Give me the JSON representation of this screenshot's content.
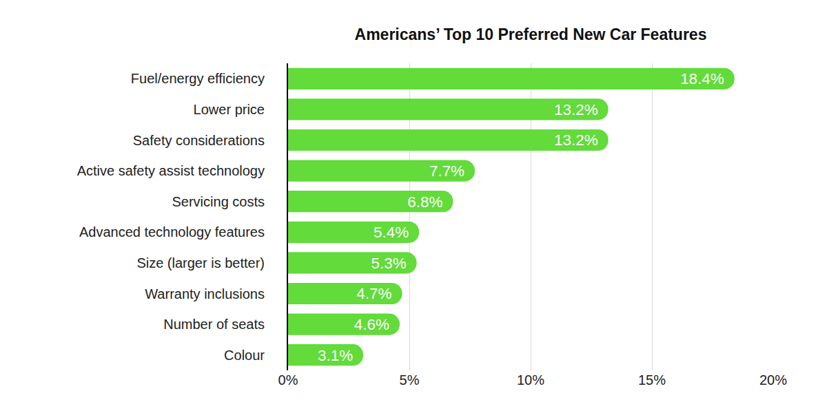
{
  "chart_data": {
    "type": "bar",
    "orientation": "horizontal",
    "title": "Americans’ Top 10 Preferred New Car Features",
    "categories": [
      "Fuel/energy efficiency",
      "Lower price",
      "Safety considerations",
      "Active safety assist technology",
      "Servicing costs",
      "Advanced technology features",
      "Size (larger is better)",
      "Warranty inclusions",
      "Number of seats",
      "Colour"
    ],
    "values": [
      18.4,
      13.2,
      13.2,
      7.7,
      6.8,
      5.4,
      5.3,
      4.7,
      4.6,
      3.1
    ],
    "value_labels": [
      "18.4%",
      "13.2%",
      "13.2%",
      "7.7%",
      "6.8%",
      "5.4%",
      "5.3%",
      "4.7%",
      "4.6%",
      "3.1%"
    ],
    "color": "#62db3b",
    "data_labels": true,
    "grid": true,
    "xlim": [
      0,
      20
    ],
    "xticks": [
      {
        "value": 0,
        "label": "0%"
      },
      {
        "value": 5,
        "label": "5%"
      },
      {
        "value": 10,
        "label": "10%"
      },
      {
        "value": 15,
        "label": "15%"
      },
      {
        "value": 20,
        "label": "20%"
      }
    ]
  }
}
